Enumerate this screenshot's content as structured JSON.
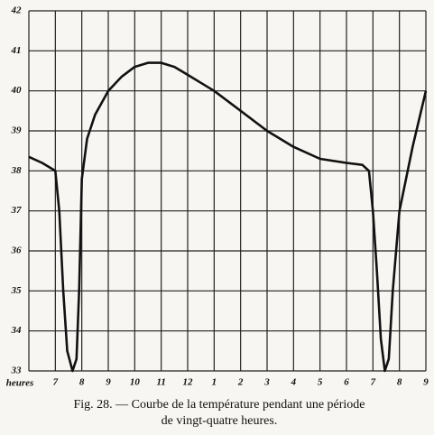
{
  "chart_data": {
    "type": "line",
    "caption": [
      "Fig. 28. — Courbe de la température pendant une période",
      "de vingt-quatre heures."
    ],
    "x_label": "heures",
    "x": [
      6,
      6.5,
      7,
      7.15,
      7.3,
      7.45,
      7.65,
      7.8,
      7.9,
      8,
      8.2,
      8.5,
      9,
      9.5,
      10,
      10.5,
      11,
      11.5,
      12,
      12.5,
      13,
      14,
      15,
      16,
      17,
      18,
      18.6,
      18.85,
      19,
      19.15,
      19.3,
      19.45,
      19.6,
      19.75,
      20,
      20.5,
      21
    ],
    "values": [
      38.35,
      38.2,
      38,
      37,
      35,
      33.5,
      33,
      33.3,
      35,
      37.8,
      38.8,
      39.4,
      40,
      40.35,
      40.6,
      40.7,
      40.7,
      40.6,
      40.4,
      40.2,
      40,
      39.5,
      39,
      38.6,
      38.3,
      38.2,
      38.15,
      38,
      37,
      35.5,
      33.8,
      33,
      33.3,
      35,
      37,
      38.6,
      40
    ],
    "color": "#111111",
    "xlim": [
      6,
      21
    ],
    "xticks": [
      7,
      8,
      9,
      10,
      11,
      12,
      {
        "value": 13,
        "label": "1"
      },
      {
        "value": 14,
        "label": "2"
      },
      {
        "value": 15,
        "label": "3"
      },
      {
        "value": 16,
        "label": "4"
      },
      {
        "value": 17,
        "label": "5"
      },
      {
        "value": 18,
        "label": "6"
      },
      {
        "value": 19,
        "label": "7"
      },
      {
        "value": 20,
        "label": "8"
      },
      {
        "value": 21,
        "label": "9"
      }
    ],
    "ylim": [
      33,
      42
    ],
    "yticks": [
      33,
      34,
      35,
      36,
      37,
      38,
      39,
      40,
      41,
      42
    ],
    "grid": true
  }
}
